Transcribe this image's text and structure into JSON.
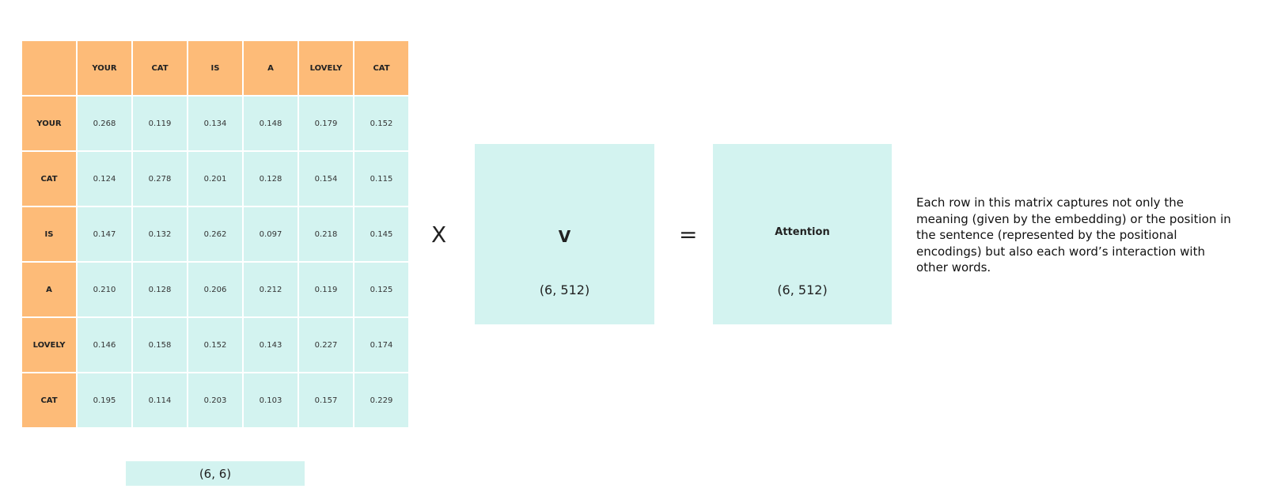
{
  "matrix": {
    "col_headers": [
      "YOUR",
      "CAT",
      "IS",
      "A",
      "LOVELY",
      "CAT"
    ],
    "row_headers": [
      "YOUR",
      "CAT",
      "IS",
      "A",
      "LOVELY",
      "CAT"
    ],
    "rows": [
      [
        "0.268",
        "0.119",
        "0.134",
        "0.148",
        "0.179",
        "0.152"
      ],
      [
        "0.124",
        "0.278",
        "0.201",
        "0.128",
        "0.154",
        "0.115"
      ],
      [
        "0.147",
        "0.132",
        "0.262",
        "0.097",
        "0.218",
        "0.145"
      ],
      [
        "0.210",
        "0.128",
        "0.206",
        "0.212",
        "0.119",
        "0.125"
      ],
      [
        "0.146",
        "0.158",
        "0.152",
        "0.143",
        "0.227",
        "0.174"
      ],
      [
        "0.195",
        "0.114",
        "0.203",
        "0.103",
        "0.157",
        "0.229"
      ]
    ],
    "shape": "(6, 6)"
  },
  "multiply_symbol": "X",
  "v_matrix": {
    "label": "V",
    "shape": "(6, 512)"
  },
  "equals_symbol": "=",
  "attention_matrix": {
    "label": "Attention",
    "shape": "(6, 512)"
  },
  "description": "Each row in this matrix captures not only the meaning (given by the embedding) or the position in the sentence (represented by the positional encodings) but also each word’s interaction with other words.",
  "colors": {
    "header": "#fdbb78",
    "cell": "#d3f3f0"
  }
}
